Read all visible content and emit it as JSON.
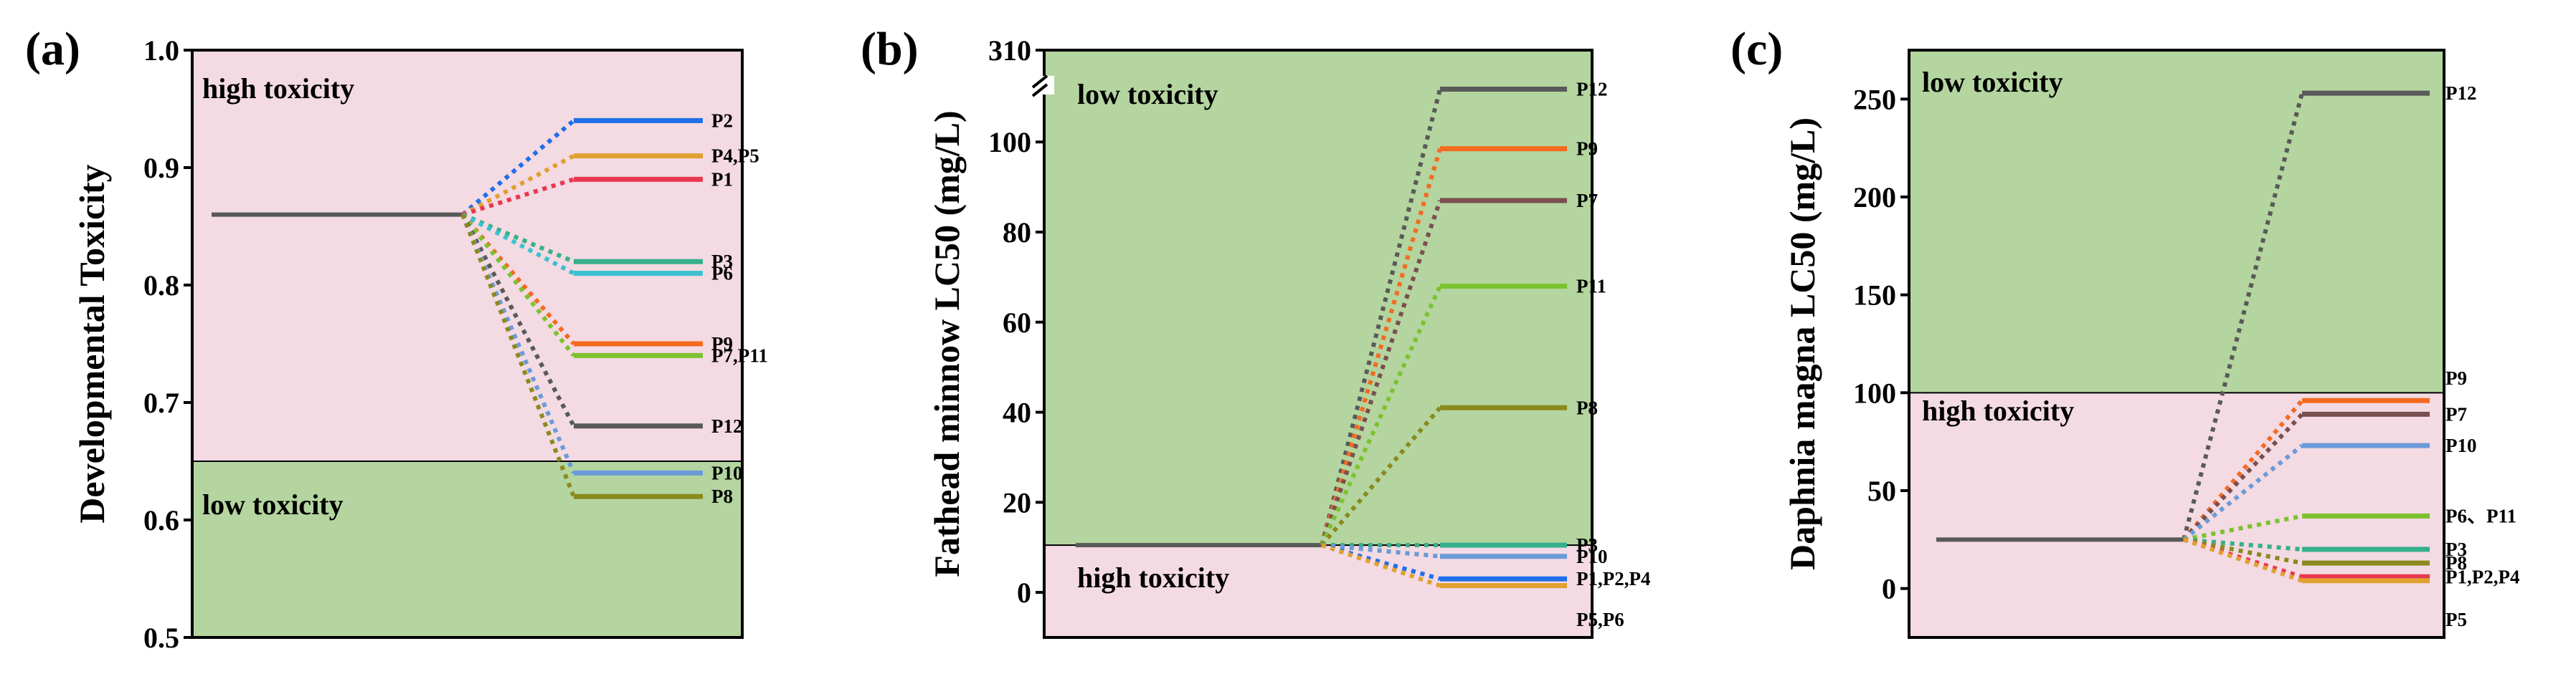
{
  "chart_data": [
    {
      "type": "line",
      "panel": "(a)",
      "ylabel": "Developmental Toxicity",
      "ylim": [
        0.5,
        1.0
      ],
      "yticks": [
        "0.5",
        "0.6",
        "0.7",
        "0.8",
        "0.9",
        "1.0"
      ],
      "ytick_values": [
        0.5,
        0.6,
        0.7,
        0.8,
        0.9,
        1.0
      ],
      "threshold": 0.65,
      "upper_zone": {
        "label": "high toxicity",
        "color": "#f3dae3"
      },
      "lower_zone": {
        "label": "low toxicity",
        "color": "#b4d59f"
      },
      "reference": {
        "value": 0.86,
        "color": "#595959"
      },
      "series": [
        {
          "label": "P2",
          "value": 0.94,
          "color": "#1f6fe8"
        },
        {
          "label": "P4,P5",
          "value": 0.91,
          "color": "#e0a030"
        },
        {
          "label": "P1",
          "value": 0.89,
          "color": "#e8384f"
        },
        {
          "label": "P3",
          "value": 0.82,
          "color": "#35b08a"
        },
        {
          "label": "P6",
          "value": 0.81,
          "color": "#3cc0cf"
        },
        {
          "label": "P9",
          "value": 0.75,
          "color": "#f46a1f"
        },
        {
          "label": "P7,P11",
          "value": 0.74,
          "color": "#7cc22e"
        },
        {
          "label": "P12",
          "value": 0.68,
          "color": "#595959"
        },
        {
          "label": "P10",
          "value": 0.64,
          "color": "#6a9bd8"
        },
        {
          "label": "P8",
          "value": 0.62,
          "color": "#8a8a1e"
        }
      ]
    },
    {
      "type": "line",
      "panel": "(b)",
      "ylabel": "Fathead minnow LC50 (mg/L)",
      "ylim": [
        -10,
        310
      ],
      "axis_break": {
        "from": 108,
        "to": 300
      },
      "yticks": [
        "0",
        "20",
        "40",
        "60",
        "80",
        "100",
        "310"
      ],
      "ytick_values": [
        0,
        20,
        40,
        60,
        80,
        100,
        310
      ],
      "threshold": 10.5,
      "upper_zone": {
        "label": "low toxicity",
        "color": "#b4d59f"
      },
      "lower_zone": {
        "label": "high toxicity",
        "color": "#f3dae3"
      },
      "reference": {
        "value": 10.5,
        "color": "#595959"
      },
      "series": [
        {
          "label": "P12",
          "value": 303,
          "color": "#595959"
        },
        {
          "label": "P9",
          "value": 98.5,
          "color": "#f46a1f"
        },
        {
          "label": "P7",
          "value": 87,
          "color": "#7b4f4f"
        },
        {
          "label": "P11",
          "value": 68,
          "color": "#7cc22e"
        },
        {
          "label": "P8",
          "value": 41,
          "color": "#8a8a1e"
        },
        {
          "label": "P3",
          "value": 10.5,
          "color": "#35b08a"
        },
        {
          "label": "P10",
          "value": 8,
          "color": "#6a9bd8"
        },
        {
          "label": "P1,P2,P4",
          "value": 3,
          "color": "#1f6fe8"
        },
        {
          "label": "P5,P6",
          "value": 1.5,
          "color": "#e0a030"
        }
      ]
    },
    {
      "type": "line",
      "panel": "(c)",
      "ylabel": "Daphnia magna LC50 (mg/L)",
      "ylim": [
        -25,
        275
      ],
      "yticks": [
        "0",
        "50",
        "100",
        "150",
        "200",
        "250"
      ],
      "ytick_values": [
        0,
        50,
        100,
        150,
        200,
        250
      ],
      "threshold": 100,
      "upper_zone": {
        "label": "low toxicity",
        "color": "#b4d59f"
      },
      "lower_zone": {
        "label": "high toxicity",
        "color": "#f3dae3"
      },
      "reference": {
        "value": 25,
        "color": "#595959"
      },
      "series": [
        {
          "label": "P12",
          "value": 253,
          "color": "#595959"
        },
        {
          "label": "P9",
          "value": 96,
          "color": "#f46a1f"
        },
        {
          "label": "P7",
          "value": 89,
          "color": "#7b4f4f"
        },
        {
          "label": "P10",
          "value": 73,
          "color": "#6a9bd8"
        },
        {
          "label": "P6、P11",
          "value": 37,
          "color": "#7cc22e"
        },
        {
          "label": "P3",
          "value": 20,
          "color": "#35b08a"
        },
        {
          "label": "P8",
          "value": 13,
          "color": "#8a8a1e"
        },
        {
          "label": "P1,P2,P4",
          "value": 6,
          "color": "#e8384f"
        },
        {
          "label": "P5",
          "value": 4,
          "color": "#e0a030"
        }
      ]
    }
  ]
}
